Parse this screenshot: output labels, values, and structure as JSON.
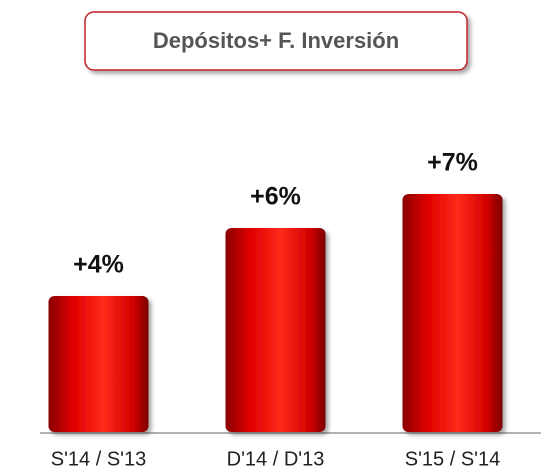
{
  "chart_data": {
    "type": "bar",
    "title": "Depósitos+ F. Inversión",
    "categories": [
      "S'14 / S'13",
      "D'14 / D'13",
      "S'15 / S'14"
    ],
    "values": [
      4,
      6,
      7
    ],
    "value_labels": [
      "+4%",
      "+6%",
      "+7%"
    ],
    "color": "#e8000b",
    "ylim": [
      0,
      10
    ]
  }
}
